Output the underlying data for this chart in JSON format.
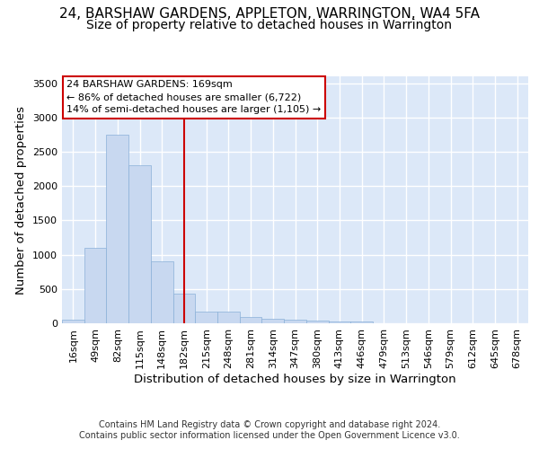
{
  "title": "24, BARSHAW GARDENS, APPLETON, WARRINGTON, WA4 5FA",
  "subtitle": "Size of property relative to detached houses in Warrington",
  "xlabel": "Distribution of detached houses by size in Warrington",
  "ylabel": "Number of detached properties",
  "bin_labels": [
    "16sqm",
    "49sqm",
    "82sqm",
    "115sqm",
    "148sqm",
    "182sqm",
    "215sqm",
    "248sqm",
    "281sqm",
    "314sqm",
    "347sqm",
    "380sqm",
    "413sqm",
    "446sqm",
    "479sqm",
    "513sqm",
    "546sqm",
    "579sqm",
    "612sqm",
    "645sqm",
    "678sqm"
  ],
  "bar_heights": [
    50,
    1100,
    2750,
    2300,
    900,
    430,
    170,
    170,
    90,
    65,
    55,
    35,
    25,
    20,
    0,
    0,
    0,
    0,
    0,
    0,
    0
  ],
  "bar_color": "#c8d8f0",
  "bar_edge_color": "#8ab0d8",
  "vline_x_index": 5,
  "vline_color": "#cc0000",
  "annotation_line1": "24 BARSHAW GARDENS: 169sqm",
  "annotation_line2": "← 86% of detached houses are smaller (6,722)",
  "annotation_line3": "14% of semi-detached houses are larger (1,105) →",
  "annotation_box_color": "#cc0000",
  "ylim": [
    0,
    3600
  ],
  "yticks": [
    0,
    500,
    1000,
    1500,
    2000,
    2500,
    3000,
    3500
  ],
  "footer_line1": "Contains HM Land Registry data © Crown copyright and database right 2024.",
  "footer_line2": "Contains public sector information licensed under the Open Government Licence v3.0.",
  "bg_color": "#dce8f8",
  "grid_color": "#ffffff",
  "title_fontsize": 11,
  "subtitle_fontsize": 10,
  "axis_label_fontsize": 9.5,
  "tick_fontsize": 8,
  "footer_fontsize": 7
}
